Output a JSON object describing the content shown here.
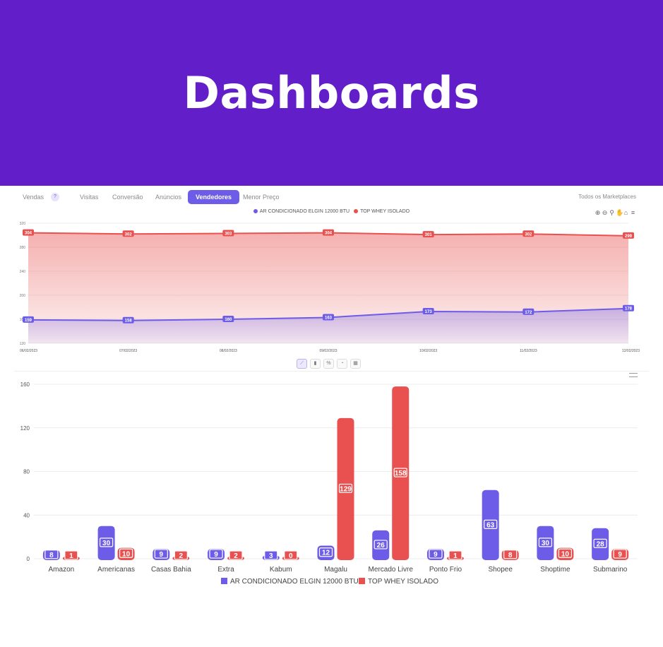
{
  "banner": {
    "title": "Dashboards"
  },
  "tabs": [
    {
      "label": "Vendas"
    },
    {
      "label": "Visitas"
    },
    {
      "label": "Conversão"
    },
    {
      "label": "Anúncios"
    },
    {
      "label": "Vendedores",
      "active": true
    },
    {
      "label": "Menor Preço"
    }
  ],
  "help_badge": "?",
  "marketplace_select": "Todos os Marketplaces",
  "legend": [
    {
      "name": "AR CONDICIONADO ELGIN 12000 BTU",
      "color": "#6c5ce7"
    },
    {
      "name": "TOP WHEY ISOLADO",
      "color": "#e8514f"
    }
  ],
  "toolbar": [
    "zoom-in-icon",
    "zoom-out-icon",
    "magnify-icon",
    "pan-icon",
    "home-icon",
    "menu-icon"
  ],
  "chart_type_buttons": [
    "line-chart-icon",
    "bar-chart-icon",
    "percent-icon",
    "pie-chart-icon",
    "table-icon"
  ],
  "chart_data": [
    {
      "type": "area",
      "x": [
        "06/02/2023",
        "07/02/2023",
        "08/02/2023",
        "09/02/2023",
        "10/02/2023",
        "11/02/2023",
        "12/02/2023"
      ],
      "series": [
        {
          "name": "AR CONDICIONADO ELGIN 12000 BTU",
          "color": "#6c5ce7",
          "values": [
            159,
            158,
            160,
            163,
            173,
            172,
            178
          ],
          "labels": [
            "159",
            "158",
            "160",
            "163",
            "173",
            "172",
            "178"
          ]
        },
        {
          "name": "TOP WHEY ISOLADO",
          "color": "#e8514f",
          "values": [
            304,
            302,
            303,
            304,
            301,
            302,
            299
          ],
          "labels": [
            "304",
            "302",
            "303",
            "304",
            "301",
            "302",
            "299"
          ]
        }
      ],
      "ylim": [
        120,
        320
      ],
      "yticks": [
        120,
        160,
        200,
        240,
        280,
        320
      ],
      "ytick_labels": [
        "120",
        "160",
        "200",
        "240",
        "280",
        "320"
      ],
      "grid": true
    },
    {
      "type": "bar",
      "categories": [
        "Amazon",
        "Americanas",
        "Casas Bahia",
        "Extra",
        "Kabum",
        "Magalu",
        "Mercado Livre",
        "Ponto Frio",
        "Shopee",
        "Shoptime",
        "Submarino"
      ],
      "series": [
        {
          "name": "AR CONDICIONADO ELGIN 12000 BTU",
          "color": "#6c5ce7",
          "values": [
            8,
            30,
            9,
            9,
            3,
            12,
            26,
            9,
            63,
            30,
            28
          ]
        },
        {
          "name": "TOP WHEY ISOLADO",
          "color": "#e8514f",
          "values": [
            1,
            10,
            2,
            2,
            0,
            129,
            158,
            1,
            8,
            10,
            9
          ]
        }
      ],
      "ylim": [
        0,
        160
      ],
      "yticks": [
        0,
        40,
        80,
        120,
        160
      ],
      "ytick_labels": [
        "0",
        "40",
        "80",
        "120",
        "160"
      ],
      "grid": true,
      "legend": "bottom-center"
    }
  ]
}
